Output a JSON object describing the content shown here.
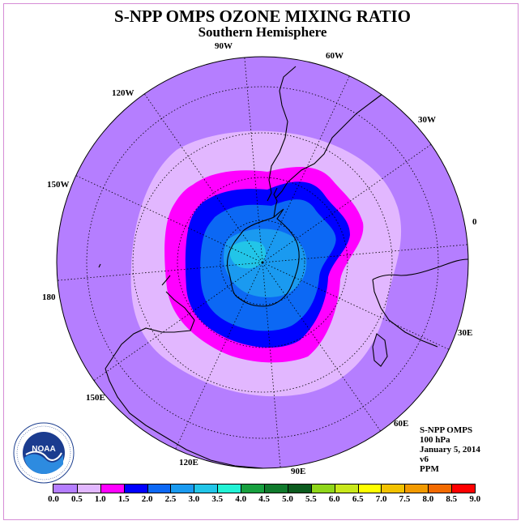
{
  "title": "S-NPP OMPS OZONE MIXING RATIO",
  "subtitle": "Southern Hemisphere",
  "longitude_labels": [
    "0",
    "30E",
    "60E",
    "90E",
    "120E",
    "150E",
    "180",
    "150W",
    "120W",
    "90W",
    "60W",
    "30W"
  ],
  "info": {
    "line1": "S-NPP OMPS",
    "line2": "100 hPa",
    "line3": "January 5, 2014",
    "line4": "v6",
    "line5": "PPM"
  },
  "colorbar": {
    "ticks": [
      "0.0",
      "0.5",
      "1.0",
      "1.5",
      "2.0",
      "2.5",
      "3.0",
      "3.5",
      "4.0",
      "4.5",
      "5.0",
      "5.5",
      "6.0",
      "6.5",
      "7.0",
      "7.5",
      "8.0",
      "8.5",
      "9.0"
    ],
    "colors": [
      "#b57eff",
      "#e2b7ff",
      "#ff00ff",
      "#0000ff",
      "#0c68f4",
      "#1a9af0",
      "#22c5e8",
      "#22f2d5",
      "#17a03f",
      "#0f7a2c",
      "#0b5b1e",
      "#8fd61a",
      "#c9e81b",
      "#ffff00",
      "#f2c200",
      "#f29a00",
      "#f26a00",
      "#ff0000",
      "#7a4a2a"
    ]
  },
  "map_colors": {
    "background_field": "#b57eff",
    "ring_light": "#e2b7ff",
    "ring_magenta": "#ff00ff",
    "ring_blue": "#0000ff",
    "ring_mid": "#0c68f4",
    "core": "#1a9af0",
    "center": "#22c5e8"
  },
  "logo": {
    "text": "NOAA",
    "ring_text": "NATIONAL OCEANIC AND ATMOSPHERIC ADMINISTRATION · U.S. DEPARTMENT OF COMMERCE"
  }
}
